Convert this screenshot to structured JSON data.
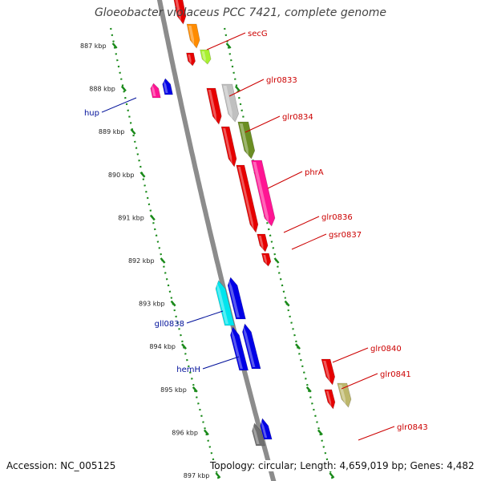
{
  "title": "Gloeobacter violaceus PCC 7421, complete genome",
  "footer": {
    "accession": "Accession: NC_005125",
    "topology": "Topology: circular; Length: 4,659,019 bp; Genes: 4,482"
  },
  "colors": {
    "backbone": "#8c8c8c",
    "tick": "#1a8a1a",
    "forward_label": "#cc0000",
    "reverse_label": "#00109a"
  },
  "kbp_ticks": [
    "887 kbp",
    "888 kbp",
    "889 kbp",
    "890 kbp",
    "891 kbp",
    "892 kbp",
    "893 kbp",
    "894 kbp",
    "895 kbp",
    "896 kbp",
    "897 kbp"
  ],
  "genes": [
    {
      "strand": "fwd",
      "color": "#e60000"
    },
    {
      "strand": "fwd",
      "color": "#ff8c00"
    },
    {
      "strand": "fwd",
      "color": "#a8f030"
    },
    {
      "strand": "fwd",
      "color": "#e60000"
    },
    {
      "strand": "fwd",
      "color": "#c0c0c0"
    },
    {
      "strand": "fwd",
      "color": "#6b8e23"
    },
    {
      "strand": "fwd",
      "color": "#e60000"
    },
    {
      "strand": "fwd",
      "color": "#ff1493"
    },
    {
      "strand": "fwd",
      "color": "#e60000"
    },
    {
      "strand": "fwd",
      "color": "#e60000"
    },
    {
      "strand": "fwd",
      "color": "#e60000"
    },
    {
      "strand": "fwd",
      "color": "#e60000"
    },
    {
      "strand": "fwd",
      "color": "#e60000"
    },
    {
      "strand": "fwd",
      "color": "#bdb76b"
    },
    {
      "strand": "fwd",
      "color": "#e60000"
    },
    {
      "strand": "rev",
      "color": "#ff1493"
    },
    {
      "strand": "rev",
      "color": "#0000e6"
    },
    {
      "strand": "rev",
      "color": "#00e5ee"
    },
    {
      "strand": "rev",
      "color": "#0000e6"
    },
    {
      "strand": "rev",
      "color": "#0000e6"
    },
    {
      "strand": "rev",
      "color": "#0000e6"
    },
    {
      "strand": "rev",
      "color": "#707070"
    },
    {
      "strand": "rev",
      "color": "#0000e6"
    }
  ],
  "labels": [
    {
      "text": "secG",
      "strand": "fwd"
    },
    {
      "text": "glr0833",
      "strand": "fwd"
    },
    {
      "text": "glr0834",
      "strand": "fwd"
    },
    {
      "text": "phrA",
      "strand": "fwd"
    },
    {
      "text": "glr0836",
      "strand": "fwd"
    },
    {
      "text": "gsr0837",
      "strand": "fwd"
    },
    {
      "text": "glr0840",
      "strand": "fwd"
    },
    {
      "text": "glr0841",
      "strand": "fwd"
    },
    {
      "text": "glr0843",
      "strand": "fwd"
    },
    {
      "text": "hup",
      "strand": "rev"
    },
    {
      "text": "gll0838",
      "strand": "rev"
    },
    {
      "text": "hemH",
      "strand": "rev"
    }
  ]
}
